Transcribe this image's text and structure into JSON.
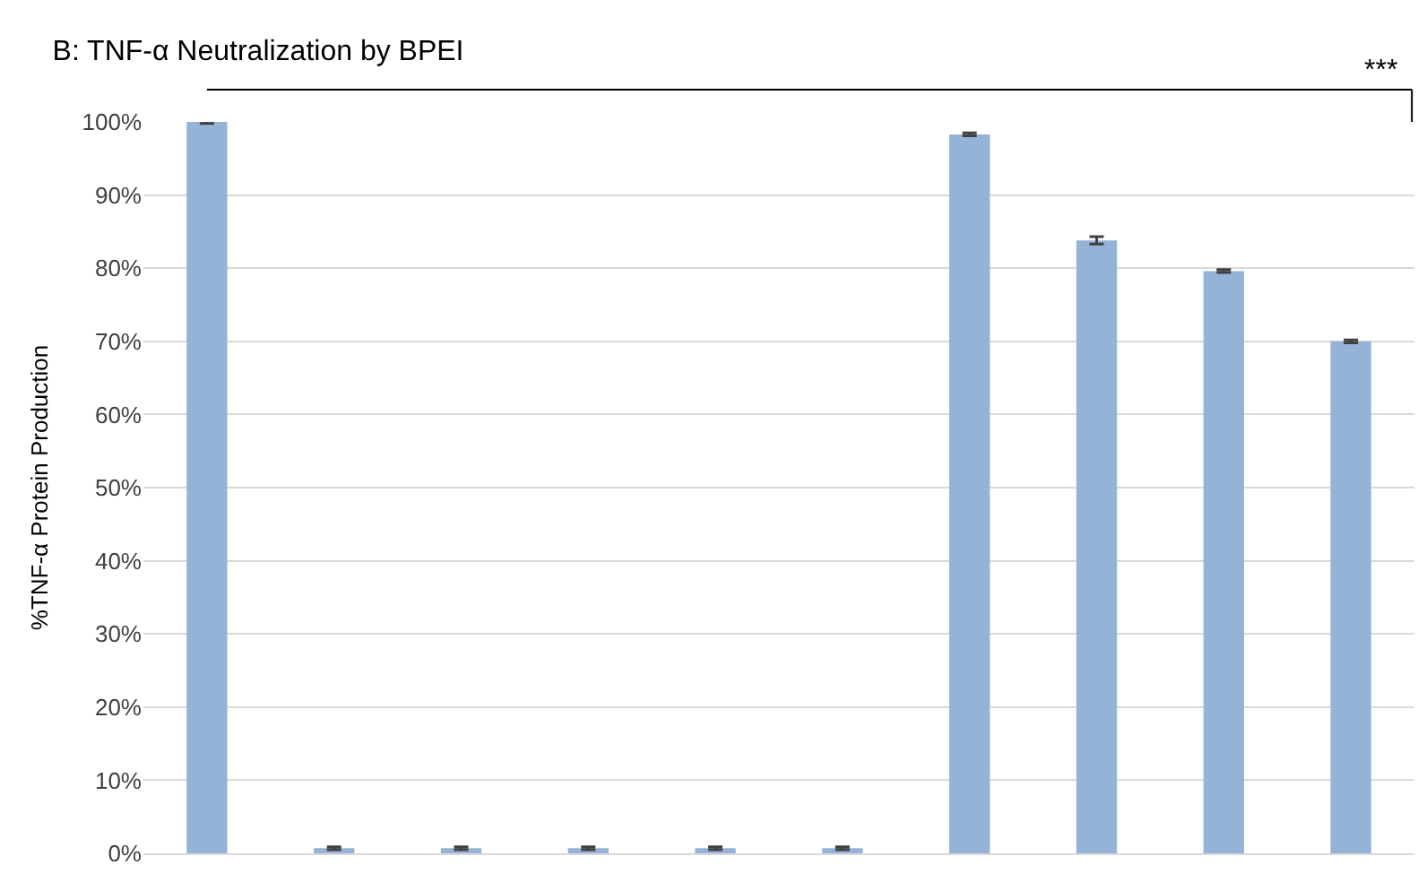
{
  "chart_data": {
    "type": "bar",
    "title": "B: TNF-α Neutralization by BPEI",
    "ylabel": "%TNF-α Protein Production",
    "categories": [
      null,
      null,
      null,
      null,
      null,
      null,
      null,
      null,
      null,
      null
    ],
    "values": [
      100,
      0.7,
      0.7,
      0.7,
      0.7,
      0.7,
      98.3,
      83.8,
      79.6,
      70
    ],
    "errors": [
      0.2,
      0.2,
      0.2,
      0.2,
      0.2,
      0.2,
      0.2,
      0.5,
      0.2,
      0.2
    ],
    "color": "#95b3d7",
    "ylim": [
      0,
      100
    ],
    "yticks": [
      {
        "value": 0,
        "label": "0%"
      },
      {
        "value": 10,
        "label": "10%"
      },
      {
        "value": 20,
        "label": "20%"
      },
      {
        "value": 30,
        "label": "30%"
      },
      {
        "value": 40,
        "label": "40%"
      },
      {
        "value": 50,
        "label": "50%"
      },
      {
        "value": 60,
        "label": "60%"
      },
      {
        "value": 70,
        "label": "70%"
      },
      {
        "value": 80,
        "label": "80%"
      },
      {
        "value": 90,
        "label": "90%"
      },
      {
        "value": 100,
        "label": "100%"
      }
    ],
    "grid": "y",
    "tick_labels": "y",
    "annotations": [
      "***"
    ]
  }
}
